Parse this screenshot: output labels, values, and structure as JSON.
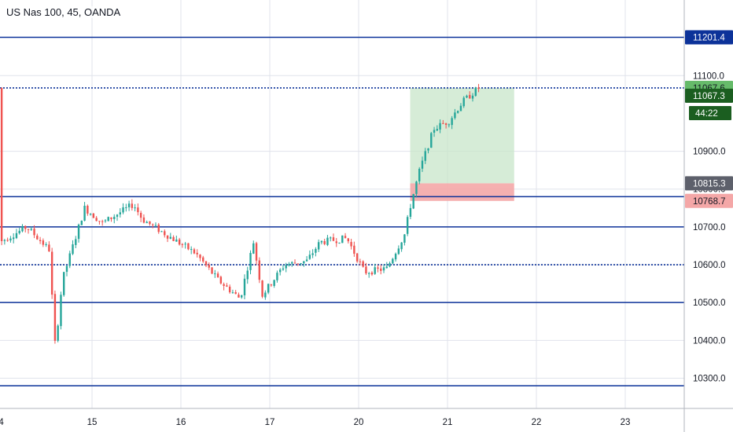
{
  "chart_data": {
    "type": "candlestick",
    "title": "US Nas 100, 45, OANDA",
    "ylim": [
      10220,
      11300
    ],
    "y_ticks": [
      {
        "value": 11100,
        "label": "11100.0"
      },
      {
        "value": 10900,
        "label": "10900.0"
      },
      {
        "value": 10800,
        "label": "10800.0"
      },
      {
        "value": 10700,
        "label": "10700.0"
      },
      {
        "value": 10600,
        "label": "10600.0"
      },
      {
        "value": 10500,
        "label": "10500.0"
      },
      {
        "value": 10400,
        "label": "10400.0"
      },
      {
        "value": 10300,
        "label": "10300.0"
      }
    ],
    "x_ticks": [
      {
        "label": "4",
        "day_index": -0.05
      },
      {
        "label": "15",
        "day_index": 1
      },
      {
        "label": "16",
        "day_index": 2
      },
      {
        "label": "17",
        "day_index": 3
      },
      {
        "label": "20",
        "day_index": 4
      },
      {
        "label": "21",
        "day_index": 5
      },
      {
        "label": "22",
        "day_index": 6
      },
      {
        "label": "23",
        "day_index": 7
      }
    ],
    "horizontal_levels": [
      {
        "value": 11201.4,
        "style": "solid",
        "color": "#0c3299",
        "label": "11201.4"
      },
      {
        "value": 11067.6,
        "style": "dotted",
        "color": "#0c3299"
      },
      {
        "value": 10780,
        "style": "solid",
        "color": "#0c3299"
      },
      {
        "value": 10700,
        "style": "solid",
        "color": "#0c3299"
      },
      {
        "value": 10600,
        "style": "dotted",
        "color": "#0c3299"
      },
      {
        "value": 10500,
        "style": "solid",
        "color": "#0c3299"
      },
      {
        "value": 10280,
        "style": "solid",
        "color": "#0c3299"
      }
    ],
    "position": {
      "type": "long",
      "entry": 10815.3,
      "target": 11067.6,
      "stop": 10768.7,
      "start_day_index": 4.58,
      "end_day_index": 5.75,
      "profit_color": "#c8e6c9",
      "loss_color": "#f4a7a7"
    },
    "badges": [
      {
        "label": "11201.4",
        "value": 11201.4,
        "bg": "#0c3299",
        "fg": "#ffffff"
      },
      {
        "label": "11067.6",
        "value": 11067.6,
        "bg": "#66bb6a",
        "fg": "#131722"
      },
      {
        "label": "11067.3",
        "value": 11047,
        "bg": "#1b5e20",
        "fg": "#ffffff"
      },
      {
        "label": "44:22",
        "value": 11001,
        "bg": "#1b5e20",
        "fg": "#ffffff"
      },
      {
        "label": "10815.3",
        "value": 10815.3,
        "bg": "#5d606b",
        "fg": "#ffffff"
      },
      {
        "label": "10768.7",
        "value": 10768.7,
        "bg": "#f4a7a7",
        "fg": "#131722"
      }
    ],
    "colors": {
      "up": "#26a69a",
      "down": "#ef5350",
      "grid": "#e0e3eb",
      "axis_line": "#b2b5be"
    },
    "day_anchors": [
      {
        "day_index": 0,
        "open": 10660
      },
      {
        "day_index": 0.3,
        "open": 10700
      },
      {
        "day_index": 0.55,
        "open": 10640
      },
      {
        "day_index": 0.62,
        "open": 10380
      },
      {
        "day_index": 0.7,
        "open": 10560
      },
      {
        "day_index": 0.95,
        "open": 10750
      },
      {
        "day_index": 1.15,
        "open": 10710
      },
      {
        "day_index": 1.5,
        "open": 10760
      },
      {
        "day_index": 1.6,
        "open": 10720
      },
      {
        "day_index": 1.8,
        "open": 10690
      },
      {
        "day_index": 2.2,
        "open": 10630
      },
      {
        "day_index": 2.45,
        "open": 10560
      },
      {
        "day_index": 2.7,
        "open": 10510
      },
      {
        "day_index": 2.85,
        "open": 10660
      },
      {
        "day_index": 2.95,
        "open": 10520
      },
      {
        "day_index": 3.2,
        "open": 10600
      },
      {
        "day_index": 3.45,
        "open": 10610
      },
      {
        "day_index": 3.6,
        "open": 10660
      },
      {
        "day_index": 3.9,
        "open": 10670
      },
      {
        "day_index": 4.1,
        "open": 10580
      },
      {
        "day_index": 4.35,
        "open": 10590
      },
      {
        "day_index": 4.55,
        "open": 10680
      },
      {
        "day_index": 4.62,
        "open": 10760
      },
      {
        "day_index": 4.72,
        "open": 10850
      },
      {
        "day_index": 4.88,
        "open": 10960
      },
      {
        "day_index": 5.05,
        "open": 10980
      },
      {
        "day_index": 5.2,
        "open": 11030
      },
      {
        "day_index": 5.38,
        "open": 11067
      }
    ]
  }
}
